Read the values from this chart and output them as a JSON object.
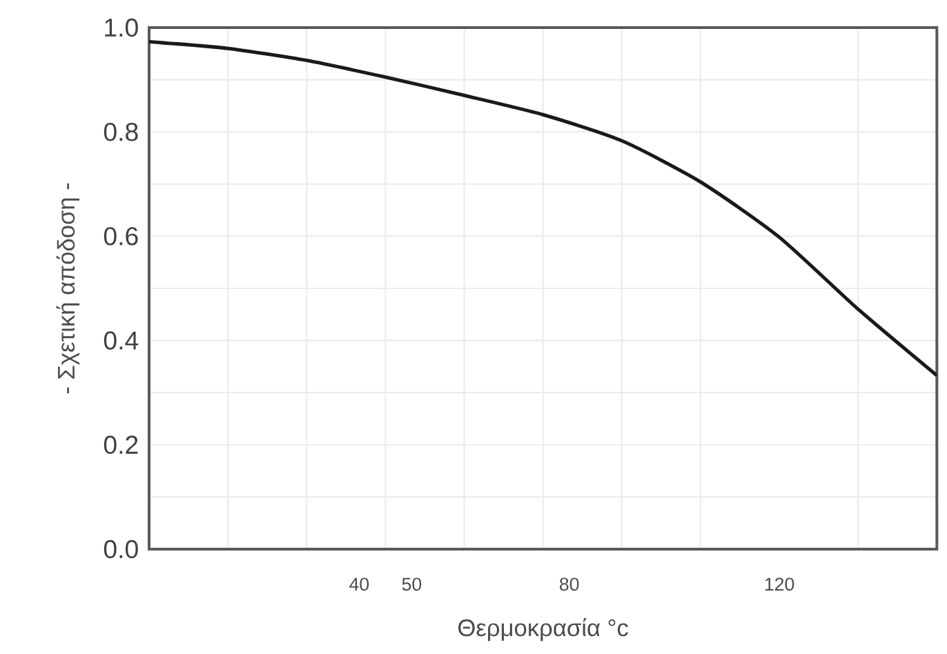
{
  "chart_data": {
    "type": "line",
    "xlabel": "Θερμοκρασία   °c",
    "ylabel": "- Σχετική απόδοση -",
    "x": [
      0,
      15,
      30,
      45,
      60,
      75,
      90,
      105,
      120,
      135,
      150
    ],
    "series": [
      {
        "color": "#1a1a1a",
        "values": [
          0.973,
          0.96,
          0.937,
          0.905,
          0.87,
          0.833,
          0.783,
          0.704,
          0.598,
          0.46,
          0.333
        ]
      }
    ],
    "xlim": [
      0,
      150
    ],
    "xticks": [
      {
        "value": 15,
        "label": null
      },
      {
        "value": 30,
        "label": null
      },
      40,
      {
        "value": 45,
        "label": null
      },
      50,
      {
        "value": 60,
        "label": null
      },
      {
        "value": 75,
        "label": null
      },
      80,
      {
        "value": 90,
        "label": null
      },
      {
        "value": 105,
        "label": null
      },
      120,
      {
        "value": 135,
        "label": null
      }
    ],
    "ylim": [
      0,
      1
    ],
    "yticks": [
      {
        "value": 0,
        "label": "0.0"
      },
      {
        "value": 0.1,
        "label": null
      },
      0.2,
      {
        "value": 0.3,
        "label": null
      },
      0.4,
      {
        "value": 0.5,
        "label": null
      },
      0.6,
      {
        "value": 0.7,
        "label": null
      },
      0.8,
      {
        "value": 0.9,
        "label": null
      },
      {
        "value": 1,
        "label": "1.0"
      }
    ],
    "grid": true,
    "marker": "none",
    "line_style": "solid"
  }
}
